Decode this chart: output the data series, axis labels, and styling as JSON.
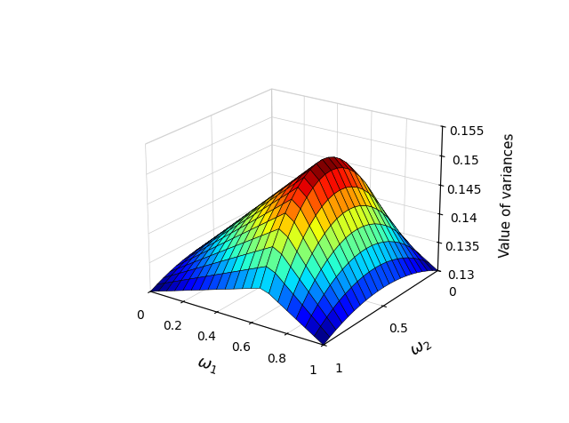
{
  "xlabel": "$\\omega_1$",
  "ylabel": "$\\omega_2$",
  "zlabel": "Value of variances",
  "xlim": [
    0,
    1
  ],
  "ylim": [
    0,
    1
  ],
  "zlim": [
    0.13,
    0.155
  ],
  "xticks": [
    0,
    0.2,
    0.4,
    0.6,
    0.8,
    1
  ],
  "xtick_labels": [
    "0",
    "0.2",
    "0.4",
    "0.6",
    "0.8",
    "1"
  ],
  "yticks": [
    0,
    0.5,
    1
  ],
  "ytick_labels": [
    "1",
    "0.5",
    "0"
  ],
  "zticks": [
    0.13,
    0.135,
    0.14,
    0.145,
    0.15,
    0.155
  ],
  "n_points": 21,
  "colormap": "jet",
  "elev": 22,
  "azim": -55
}
